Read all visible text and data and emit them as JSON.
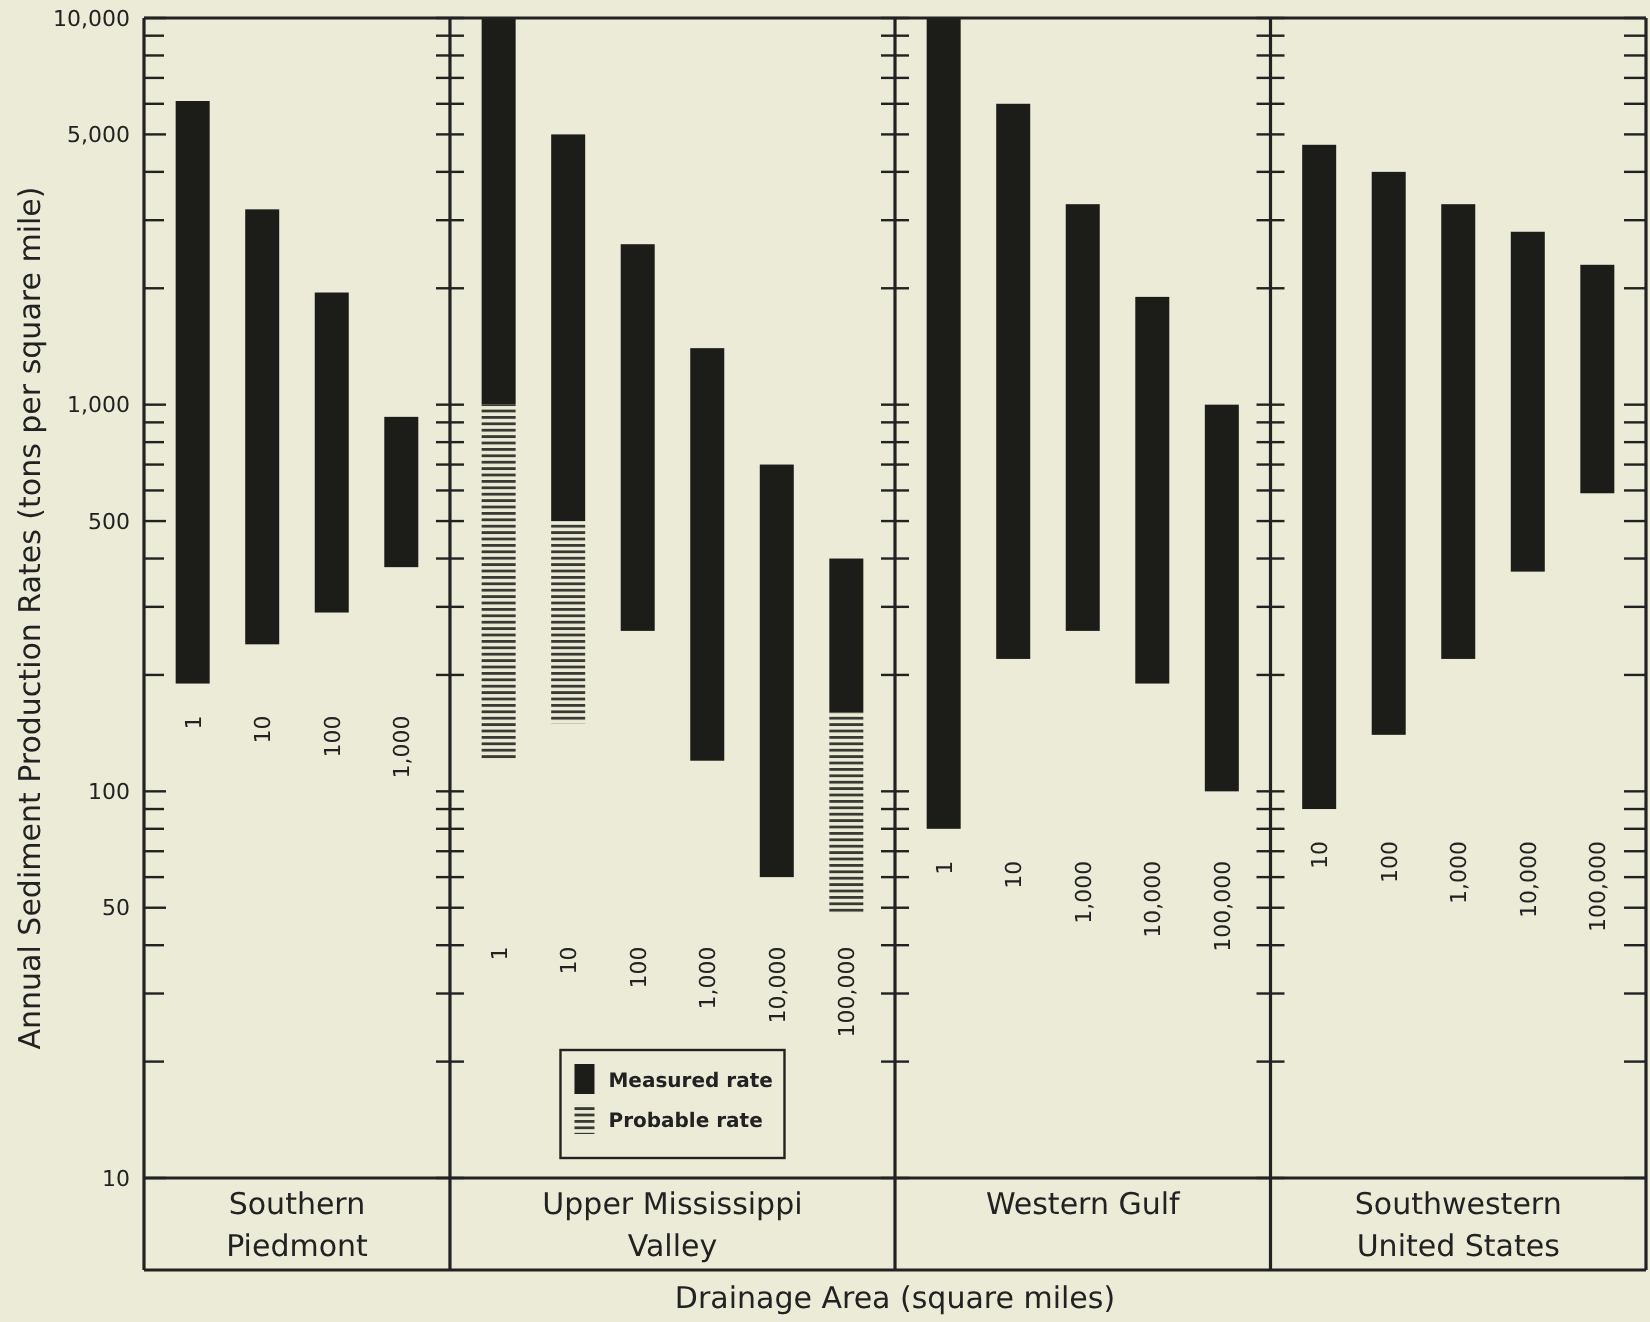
{
  "chart_data": [
    {
      "type": "bar",
      "categories": [
        "1",
        "10",
        "100",
        "1,000"
      ],
      "series": [
        {
          "color": "#1c1c18",
          "values": [
            5910,
            2960,
            1660,
            550
          ],
          "base": [
            190,
            240,
            290,
            380
          ]
        }
      ],
      "log": true,
      "ylim": [
        10,
        10000
      ],
      "yticks": [
        10,
        {
          "value": 20,
          "label": null
        },
        {
          "value": 30,
          "label": null
        },
        {
          "value": 40,
          "label": null
        },
        50,
        {
          "value": 60,
          "label": null
        },
        {
          "value": 70,
          "label": null
        },
        {
          "value": 80,
          "label": null
        },
        {
          "value": 90,
          "label": null
        },
        100,
        {
          "value": 200,
          "label": null
        },
        {
          "value": 300,
          "label": null
        },
        {
          "value": 400,
          "label": null
        },
        500,
        {
          "value": 600,
          "label": null
        },
        {
          "value": 700,
          "label": null
        },
        {
          "value": 800,
          "label": null
        },
        {
          "value": 900,
          "label": null
        },
        {
          "value": 1000,
          "label": "1,000"
        },
        {
          "value": 2000,
          "label": null
        },
        {
          "value": 3000,
          "label": null
        },
        {
          "value": 4000,
          "label": null
        },
        {
          "value": 5000,
          "label": "5,000"
        },
        {
          "value": 6000,
          "label": null
        },
        {
          "value": 7000,
          "label": null
        },
        {
          "value": 8000,
          "label": null
        },
        {
          "value": 9000,
          "label": null
        },
        {
          "value": 10000,
          "label": "10,000"
        }
      ],
      "xlabel": "Southern Piedmont",
      "ylabel": "Annual Sediment Production Rates (tons per square mile)",
      "annotations": [
        "Drainage Area (square miles)"
      ]
    },
    {
      "type": "bar",
      "categories": [
        "1",
        "10",
        "100",
        "1,000",
        "10,000",
        "100,000"
      ],
      "series": [
        {
          "name": "Measured rate",
          "color": "#1c1c18",
          "values": [
            9000,
            4500,
            2340,
            1280,
            640,
            240
          ],
          "base": [
            1000,
            500,
            260,
            120,
            60,
            160
          ]
        },
        {
          "name": "Probable rate",
          "color": "#3a3a34",
          "values": [
            880,
            350,
            null,
            null,
            null,
            112
          ],
          "base": [
            120,
            150,
            null,
            null,
            null,
            48
          ]
        }
      ],
      "log": true,
      "ylim": [
        10,
        10000
      ],
      "yticks": [
        {
          "value": 10,
          "label": null
        },
        {
          "value": 20,
          "label": null
        },
        {
          "value": 30,
          "label": null
        },
        {
          "value": 40,
          "label": null
        },
        {
          "value": 50,
          "label": null
        },
        {
          "value": 60,
          "label": null
        },
        {
          "value": 70,
          "label": null
        },
        {
          "value": 80,
          "label": null
        },
        {
          "value": 90,
          "label": null
        },
        {
          "value": 100,
          "label": null
        },
        {
          "value": 200,
          "label": null
        },
        {
          "value": 300,
          "label": null
        },
        {
          "value": 400,
          "label": null
        },
        {
          "value": 500,
          "label": null
        },
        {
          "value": 600,
          "label": null
        },
        {
          "value": 700,
          "label": null
        },
        {
          "value": 800,
          "label": null
        },
        {
          "value": 900,
          "label": null
        },
        {
          "value": 1000,
          "label": null
        },
        {
          "value": 2000,
          "label": null
        },
        {
          "value": 3000,
          "label": null
        },
        {
          "value": 4000,
          "label": null
        },
        {
          "value": 5000,
          "label": null
        },
        {
          "value": 6000,
          "label": null
        },
        {
          "value": 7000,
          "label": null
        },
        {
          "value": 8000,
          "label": null
        },
        {
          "value": 9000,
          "label": null
        },
        {
          "value": 10000,
          "label": null
        }
      ],
      "tick_labels": "x",
      "legend": "bottom",
      "xlabel": "Upper Mississippi Valley"
    },
    {
      "type": "bar",
      "categories": [
        "1",
        "10",
        "1,000",
        "10,000",
        "100,000"
      ],
      "series": [
        {
          "color": "#1c1c18",
          "values": [
            9920,
            5780,
            3040,
            1710,
            900
          ],
          "base": [
            80,
            220,
            260,
            190,
            100
          ]
        }
      ],
      "log": true,
      "ylim": [
        10,
        10000
      ],
      "yticks": [
        {
          "value": 10,
          "label": null
        },
        {
          "value": 20,
          "label": null
        },
        {
          "value": 30,
          "label": null
        },
        {
          "value": 40,
          "label": null
        },
        {
          "value": 50,
          "label": null
        },
        {
          "value": 60,
          "label": null
        },
        {
          "value": 70,
          "label": null
        },
        {
          "value": 80,
          "label": null
        },
        {
          "value": 90,
          "label": null
        },
        {
          "value": 100,
          "label": null
        },
        {
          "value": 200,
          "label": null
        },
        {
          "value": 300,
          "label": null
        },
        {
          "value": 400,
          "label": null
        },
        {
          "value": 500,
          "label": null
        },
        {
          "value": 600,
          "label": null
        },
        {
          "value": 700,
          "label": null
        },
        {
          "value": 800,
          "label": null
        },
        {
          "value": 900,
          "label": null
        },
        {
          "value": 1000,
          "label": null
        },
        {
          "value": 2000,
          "label": null
        },
        {
          "value": 3000,
          "label": null
        },
        {
          "value": 4000,
          "label": null
        },
        {
          "value": 5000,
          "label": null
        },
        {
          "value": 6000,
          "label": null
        },
        {
          "value": 7000,
          "label": null
        },
        {
          "value": 8000,
          "label": null
        },
        {
          "value": 9000,
          "label": null
        },
        {
          "value": 10000,
          "label": null
        }
      ],
      "tick_labels": "x",
      "xlabel": "Western Gulf"
    },
    {
      "type": "bar",
      "categories": [
        "10",
        "100",
        "1,000",
        "10,000",
        "100,000"
      ],
      "series": [
        {
          "color": "#1c1c18",
          "values": [
            4610,
            3860,
            3080,
            2430,
            1710
          ],
          "base": [
            90,
            140,
            220,
            370,
            590
          ]
        }
      ],
      "log": true,
      "ylim": [
        10,
        10000
      ],
      "yticks": [
        {
          "value": 10,
          "label": null
        },
        {
          "value": 20,
          "label": null
        },
        {
          "value": 30,
          "label": null
        },
        {
          "value": 40,
          "label": null
        },
        {
          "value": 50,
          "label": null
        },
        {
          "value": 60,
          "label": null
        },
        {
          "value": 70,
          "label": null
        },
        {
          "value": 80,
          "label": null
        },
        {
          "value": 90,
          "label": null
        },
        {
          "value": 100,
          "label": null
        },
        {
          "value": 200,
          "label": null
        },
        {
          "value": 300,
          "label": null
        },
        {
          "value": 400,
          "label": null
        },
        {
          "value": 500,
          "label": null
        },
        {
          "value": 600,
          "label": null
        },
        {
          "value": 700,
          "label": null
        },
        {
          "value": 800,
          "label": null
        },
        {
          "value": 900,
          "label": null
        },
        {
          "value": 1000,
          "label": null
        },
        {
          "value": 2000,
          "label": null
        },
        {
          "value": 3000,
          "label": null
        },
        {
          "value": 4000,
          "label": null
        },
        {
          "value": 5000,
          "label": null
        },
        {
          "value": 6000,
          "label": null
        },
        {
          "value": 7000,
          "label": null
        },
        {
          "value": 8000,
          "label": null
        },
        {
          "value": 9000,
          "label": null
        },
        {
          "value": 10000,
          "label": null
        }
      ],
      "tick_labels": "x",
      "xlabel": "Southwestern United States"
    }
  ]
}
